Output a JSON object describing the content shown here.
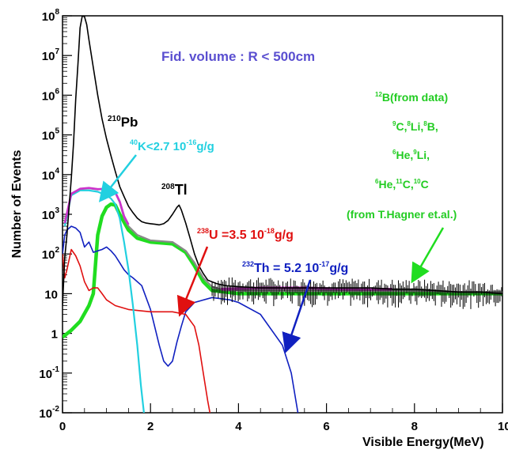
{
  "chart_data": {
    "type": "line",
    "title": "",
    "xlabel": "Visible Energy(MeV)",
    "ylabel": "Number of Events",
    "xlim": [
      0,
      10
    ],
    "ylim": [
      0.01,
      100000000
    ],
    "yscale": "log",
    "grid": false,
    "x_ticks": [
      "0",
      "2",
      "4",
      "6",
      "8",
      "10"
    ],
    "y_ticks": [
      {
        "base": "10",
        "exp": "-2",
        "value": 0.01
      },
      {
        "base": "10",
        "exp": "-1",
        "value": 0.1
      },
      {
        "base": "1",
        "exp": "",
        "value": 1
      },
      {
        "base": "10",
        "exp": "",
        "value": 10
      },
      {
        "base": "10",
        "exp": "2",
        "value": 100
      },
      {
        "base": "10",
        "exp": "3",
        "value": 1000
      },
      {
        "base": "10",
        "exp": "4",
        "value": 10000
      },
      {
        "base": "10",
        "exp": "5",
        "value": 100000
      },
      {
        "base": "10",
        "exp": "6",
        "value": 1000000
      },
      {
        "base": "10",
        "exp": "7",
        "value": 10000000
      },
      {
        "base": "10",
        "exp": "8",
        "value": 100000000
      }
    ],
    "annotations": {
      "fid_volume": "Fid. volume : R < 500cm",
      "pb210": {
        "sup": "210",
        "text": "Pb"
      },
      "k40": {
        "sup": "40",
        "text": "K<2.7  10",
        "sup2": "-16",
        "text2": "g/g"
      },
      "tl208": {
        "sup": "208",
        "text": "Tl"
      },
      "u238": {
        "sup": "238",
        "text": "U =3.5  10",
        "sup2": "-18",
        "text2": "g/g"
      },
      "th232": {
        "sup": "232",
        "text": "Th = 5.2  10",
        "sup2": "-17",
        "text2": "g/g"
      },
      "cosmo_line1": {
        "sup": "12",
        "text": "B(from data)"
      },
      "cosmo_line2": {
        "s1": "9",
        "t1": "C,",
        "s2": "8",
        "t2": "Li,",
        "s3": "8",
        "t3": "B,"
      },
      "cosmo_line3": {
        "s1": "6",
        "t1": "He,",
        "s2": "9",
        "t2": "Li,"
      },
      "cosmo_line4": {
        "s1": "6",
        "t1": "He,",
        "s2": "11",
        "t2": "C,",
        "s3": "10",
        "t3": "C"
      },
      "cosmo_line5": "(from T.Hagner et.al.)"
    },
    "colors": {
      "total": "#000000",
      "k40": "#22d0e0",
      "u238": "#e01010",
      "th232": "#1020c0",
      "cosmogenic": "#20dd20",
      "sum": "#888888",
      "magenta": "#cc33cc",
      "fid_text": "#5a4fd0",
      "cosmo_text": "#22cc22"
    },
    "series": [
      {
        "key": "total",
        "points": [
          [
            0,
            5
          ],
          [
            0.05,
            80
          ],
          [
            0.1,
            300
          ],
          [
            0.15,
            1500
          ],
          [
            0.2,
            8000
          ],
          [
            0.25,
            60000
          ],
          [
            0.3,
            800000
          ],
          [
            0.35,
            6000000
          ],
          [
            0.4,
            50000000
          ],
          [
            0.45,
            100000000
          ],
          [
            0.5,
            95000000
          ],
          [
            0.55,
            60000000
          ],
          [
            0.6,
            25000000
          ],
          [
            0.7,
            5000000
          ],
          [
            0.8,
            1000000
          ],
          [
            0.9,
            250000
          ],
          [
            1.0,
            80000
          ],
          [
            1.1,
            30000
          ],
          [
            1.2,
            12000
          ],
          [
            1.3,
            5000
          ],
          [
            1.4,
            2800
          ],
          [
            1.5,
            1600
          ],
          [
            1.6,
            1100
          ],
          [
            1.7,
            800
          ],
          [
            1.8,
            650
          ],
          [
            1.9,
            600
          ],
          [
            2.0,
            580
          ],
          [
            2.1,
            560
          ],
          [
            2.2,
            540
          ],
          [
            2.3,
            580
          ],
          [
            2.4,
            700
          ],
          [
            2.5,
            1000
          ],
          [
            2.6,
            1500
          ],
          [
            2.65,
            1700
          ],
          [
            2.7,
            1300
          ],
          [
            2.8,
            600
          ],
          [
            2.9,
            250
          ],
          [
            3.0,
            100
          ],
          [
            3.1,
            50
          ],
          [
            3.2,
            32
          ],
          [
            3.3,
            22
          ],
          [
            3.5,
            18
          ],
          [
            3.7,
            16
          ],
          [
            4.0,
            15
          ],
          [
            4.5,
            14
          ],
          [
            5.0,
            14
          ],
          [
            5.5,
            14
          ],
          [
            6.0,
            14
          ],
          [
            6.5,
            14
          ],
          [
            7.0,
            14
          ],
          [
            7.5,
            13
          ],
          [
            8.0,
            13
          ],
          [
            8.5,
            12
          ],
          [
            9.0,
            11
          ],
          [
            9.5,
            11
          ],
          [
            10,
            10
          ]
        ]
      },
      {
        "key": "k40",
        "points": [
          [
            0.05,
            500
          ],
          [
            0.2,
            3000
          ],
          [
            0.4,
            4000
          ],
          [
            0.6,
            4000
          ],
          [
            0.8,
            3700
          ],
          [
            1.0,
            3000
          ],
          [
            1.1,
            2500
          ],
          [
            1.2,
            1800
          ],
          [
            1.3,
            800
          ],
          [
            1.4,
            200
          ],
          [
            1.5,
            40
          ],
          [
            1.6,
            5
          ],
          [
            1.7,
            0.5
          ],
          [
            1.78,
            0.05
          ],
          [
            1.85,
            0.01
          ]
        ]
      },
      {
        "key": "u238",
        "points": [
          [
            0,
            100
          ],
          [
            0.05,
            25
          ],
          [
            0.1,
            40
          ],
          [
            0.2,
            130
          ],
          [
            0.3,
            90
          ],
          [
            0.4,
            50
          ],
          [
            0.5,
            20
          ],
          [
            0.6,
            12
          ],
          [
            0.7,
            14
          ],
          [
            0.8,
            14
          ],
          [
            0.9,
            10
          ],
          [
            1.0,
            7
          ],
          [
            1.2,
            5
          ],
          [
            1.5,
            4
          ],
          [
            2.0,
            3.5
          ],
          [
            2.5,
            3.5
          ],
          [
            2.8,
            3
          ],
          [
            3.0,
            1.5
          ],
          [
            3.1,
            0.5
          ],
          [
            3.2,
            0.1
          ],
          [
            3.3,
            0.02
          ],
          [
            3.35,
            0.01
          ]
        ]
      },
      {
        "key": "th232",
        "points": [
          [
            0,
            100
          ],
          [
            0.05,
            300
          ],
          [
            0.1,
            400
          ],
          [
            0.2,
            500
          ],
          [
            0.3,
            450
          ],
          [
            0.4,
            350
          ],
          [
            0.5,
            150
          ],
          [
            0.6,
            200
          ],
          [
            0.7,
            110
          ],
          [
            0.8,
            120
          ],
          [
            0.9,
            130
          ],
          [
            1.0,
            150
          ],
          [
            1.1,
            120
          ],
          [
            1.2,
            90
          ],
          [
            1.3,
            60
          ],
          [
            1.4,
            40
          ],
          [
            1.5,
            30
          ],
          [
            1.6,
            25
          ],
          [
            1.8,
            16
          ],
          [
            2.0,
            4
          ],
          [
            2.2,
            0.5
          ],
          [
            2.3,
            0.2
          ],
          [
            2.4,
            0.15
          ],
          [
            2.5,
            0.2
          ],
          [
            2.6,
            0.6
          ],
          [
            2.7,
            1.5
          ],
          [
            2.8,
            3.5
          ],
          [
            3.0,
            6
          ],
          [
            3.4,
            8
          ],
          [
            3.8,
            7
          ],
          [
            4.0,
            6
          ],
          [
            4.5,
            3
          ],
          [
            5.0,
            0.5
          ],
          [
            5.2,
            0.1
          ],
          [
            5.35,
            0.01
          ]
        ]
      },
      {
        "key": "cosmogenic",
        "points": [
          [
            0,
            0.8
          ],
          [
            0.2,
            1.2
          ],
          [
            0.4,
            2
          ],
          [
            0.6,
            5
          ],
          [
            0.7,
            10
          ],
          [
            0.8,
            300
          ],
          [
            0.9,
            900
          ],
          [
            1.0,
            1500
          ],
          [
            1.1,
            1800
          ],
          [
            1.2,
            1700
          ],
          [
            1.3,
            1000
          ],
          [
            1.5,
            400
          ],
          [
            1.7,
            250
          ],
          [
            2.0,
            200
          ],
          [
            2.5,
            180
          ],
          [
            2.8,
            110
          ],
          [
            3.0,
            50
          ],
          [
            3.2,
            20
          ],
          [
            3.4,
            12
          ],
          [
            3.7,
            11
          ],
          [
            4.0,
            10
          ],
          [
            5.0,
            10
          ],
          [
            6.0,
            10
          ],
          [
            7.0,
            10
          ],
          [
            8.0,
            10
          ],
          [
            9.0,
            10
          ],
          [
            10,
            10
          ]
        ]
      },
      {
        "key": "sum",
        "points": [
          [
            0.05,
            600
          ],
          [
            0.2,
            3200
          ],
          [
            0.4,
            4300
          ],
          [
            0.6,
            4500
          ],
          [
            0.8,
            4200
          ],
          [
            1.0,
            4400
          ],
          [
            1.1,
            4200
          ],
          [
            1.2,
            3500
          ],
          [
            1.3,
            2000
          ],
          [
            1.4,
            800
          ],
          [
            1.5,
            500
          ],
          [
            1.7,
            300
          ],
          [
            2.0,
            220
          ],
          [
            2.5,
            200
          ],
          [
            2.8,
            120
          ],
          [
            3.0,
            60
          ],
          [
            3.2,
            25
          ],
          [
            3.4,
            15
          ],
          [
            3.7,
            12
          ],
          [
            4.0,
            12
          ],
          [
            5.0,
            12
          ],
          [
            6.0,
            12
          ],
          [
            7.0,
            12
          ],
          [
            8.0,
            12
          ],
          [
            9.0,
            11
          ],
          [
            10,
            11
          ]
        ]
      },
      {
        "key": "magenta",
        "points": [
          [
            0.05,
            600
          ],
          [
            0.2,
            3300
          ],
          [
            0.4,
            4400
          ],
          [
            0.6,
            4600
          ],
          [
            0.8,
            4300
          ],
          [
            1.0,
            4400
          ],
          [
            1.1,
            4300
          ],
          [
            1.2,
            3600
          ],
          [
            1.3,
            2100
          ],
          [
            1.4,
            900
          ],
          [
            1.5,
            550
          ]
        ]
      },
      {
        "key": "magenta2",
        "points": [
          [
            3.6,
            13
          ],
          [
            4.5,
            14
          ],
          [
            5.5,
            14
          ],
          [
            6.5,
            13
          ],
          [
            7.5,
            13
          ]
        ]
      }
    ]
  }
}
